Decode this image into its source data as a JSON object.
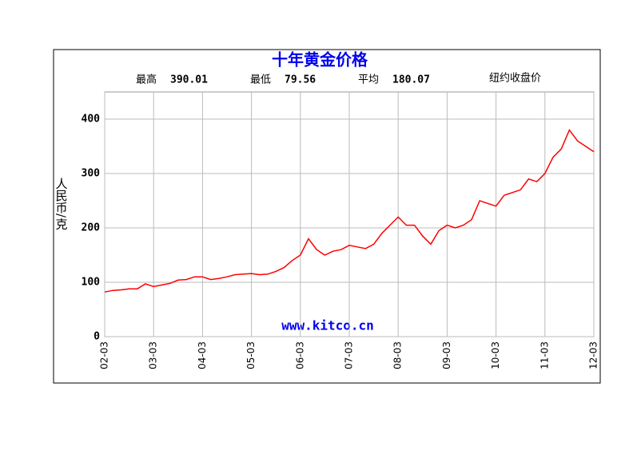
{
  "chart_data": {
    "type": "line",
    "title": "十年黄金价格",
    "stats": [
      {
        "label": "最高",
        "value": 390.01
      },
      {
        "label": "最低",
        "value": 79.56
      },
      {
        "label": "平均",
        "value": 180.07
      }
    ],
    "note": "纽约收盘价",
    "ylabel": "人民币/克",
    "watermark": "www.kitco.cn",
    "x": [
      "02-03",
      "02-05",
      "02-07",
      "02-09",
      "02-11",
      "03-01",
      "03-03",
      "03-05",
      "03-07",
      "03-09",
      "03-11",
      "04-01",
      "04-03",
      "04-05",
      "04-07",
      "04-09",
      "04-11",
      "05-01",
      "05-03",
      "05-05",
      "05-07",
      "05-09",
      "05-11",
      "06-01",
      "06-03",
      "06-05",
      "06-07",
      "06-09",
      "06-11",
      "07-01",
      "07-03",
      "07-05",
      "07-07",
      "07-09",
      "07-11",
      "08-01",
      "08-03",
      "08-05",
      "08-07",
      "08-09",
      "08-11",
      "09-01",
      "09-03",
      "09-05",
      "09-07",
      "09-09",
      "09-11",
      "10-01",
      "10-03",
      "10-05",
      "10-07",
      "10-09",
      "10-11",
      "11-01",
      "11-03",
      "11-05",
      "11-07",
      "11-09",
      "11-11",
      "12-01",
      "12-03"
    ],
    "series": [
      {
        "name": "黄金价格",
        "color": "#ff0000",
        "values": [
          82,
          85,
          86,
          88,
          88,
          97,
          92,
          95,
          98,
          104,
          105,
          110,
          110,
          105,
          107,
          110,
          114,
          115,
          116,
          114,
          115,
          120,
          127,
          140,
          150,
          180,
          160,
          150,
          157,
          160,
          168,
          165,
          162,
          170,
          190,
          205,
          220,
          205,
          205,
          185,
          170,
          195,
          205,
          200,
          205,
          215,
          250,
          245,
          240,
          260,
          265,
          270,
          290,
          285,
          300,
          330,
          345,
          380,
          360,
          350,
          340
        ]
      }
    ],
    "xlim": [
      "02-03",
      "12-03"
    ],
    "xticks": [
      "02-03",
      "03-03",
      "04-03",
      "05-03",
      "06-03",
      "07-03",
      "08-03",
      "09-03",
      "10-03",
      "11-03",
      "12-03"
    ],
    "ylim": [
      0,
      450
    ],
    "yticks": [
      0,
      100,
      200,
      300,
      400
    ],
    "grid": true
  }
}
